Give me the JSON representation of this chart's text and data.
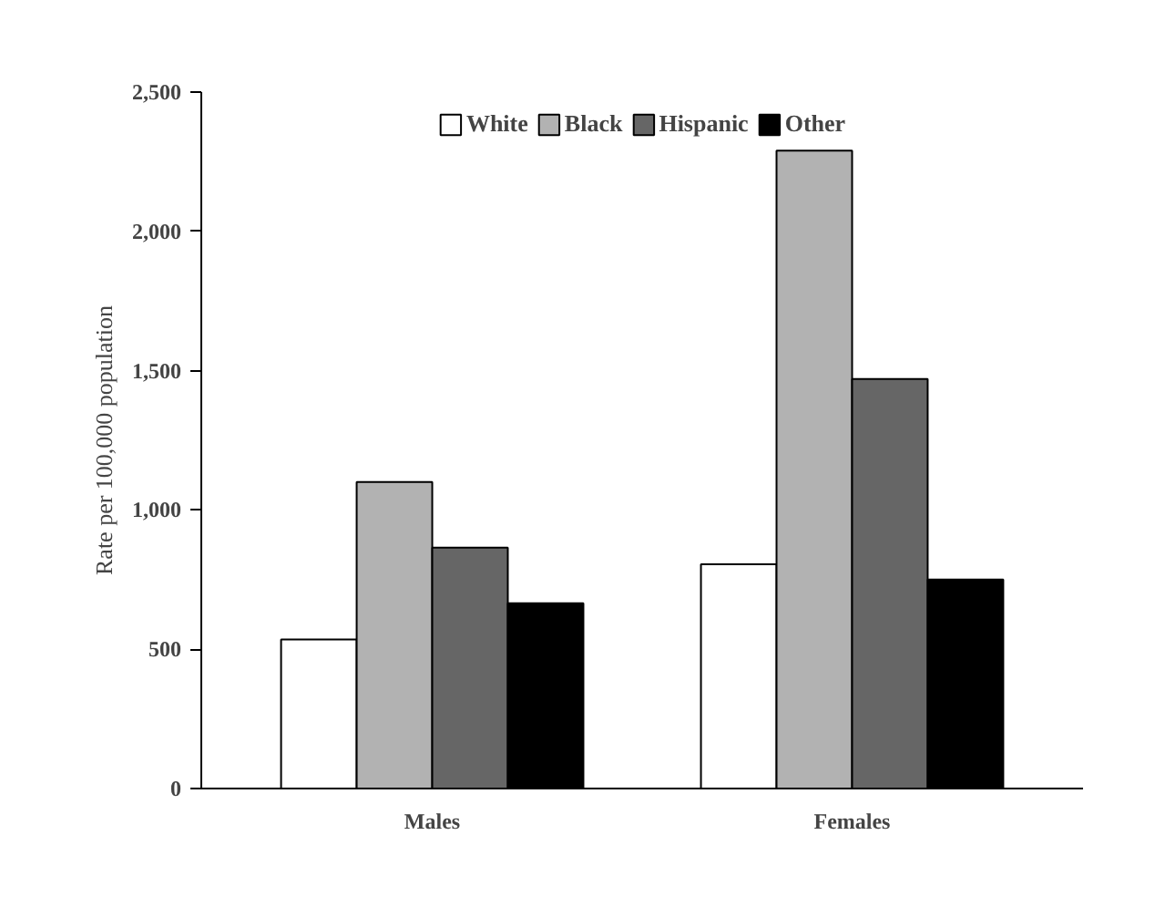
{
  "chart_data": {
    "type": "bar",
    "categories": [
      "Males",
      "Females"
    ],
    "ylabel": "Rate per 100,000 population",
    "series": [
      {
        "name": "White",
        "color": "#ffffff",
        "values": [
          535,
          805
        ]
      },
      {
        "name": "Black",
        "color": "#b2b2b2",
        "values": [
          1100,
          2290
        ]
      },
      {
        "name": "Hispanic",
        "color": "#666666",
        "values": [
          865,
          1470
        ]
      },
      {
        "name": "Other",
        "color": "#000000",
        "values": [
          665,
          750
        ]
      }
    ],
    "ylim": [
      0,
      2500
    ],
    "yticks": [
      {
        "value": 0,
        "label": "0"
      },
      {
        "value": 500,
        "label": "500"
      },
      {
        "value": 1000,
        "label": "1,000"
      },
      {
        "value": 1500,
        "label": "1,500"
      },
      {
        "value": 2000,
        "label": "2,000"
      },
      {
        "value": 2500,
        "label": "2,500"
      }
    ],
    "grid": false,
    "legend": "top"
  }
}
